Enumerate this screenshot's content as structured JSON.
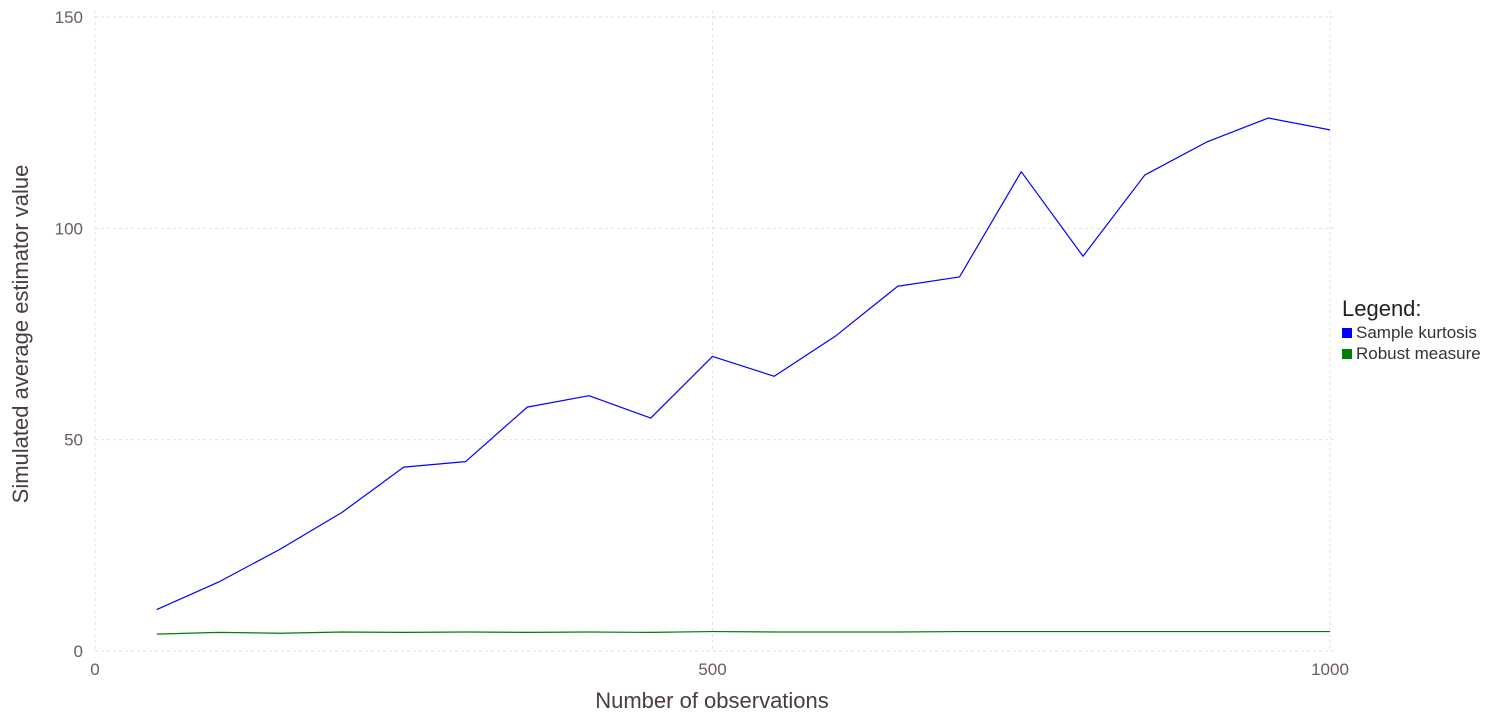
{
  "chart_data": {
    "type": "line",
    "title": "",
    "xlabel": "Number of observations",
    "ylabel": "Simulated average estimator value",
    "xlim": [
      0,
      1000
    ],
    "ylim": [
      0,
      150
    ],
    "x_ticks": [
      0,
      500,
      1000
    ],
    "y_ticks": [
      0,
      50,
      100,
      150
    ],
    "grid": true,
    "legend": {
      "title": "Legend:",
      "position": "right"
    },
    "x": [
      50,
      100,
      150,
      200,
      250,
      300,
      350,
      400,
      450,
      500,
      550,
      600,
      650,
      700,
      750,
      800,
      850,
      900,
      950,
      1000
    ],
    "series": [
      {
        "name": "Sample kurtosis",
        "color": "#0000ff",
        "values": [
          9.8,
          16.3,
          24.1,
          32.8,
          43.5,
          44.8,
          57.7,
          60.4,
          55.1,
          69.7,
          65.0,
          74.6,
          86.3,
          88.5,
          113.4,
          93.4,
          112.6,
          120.4,
          126.1,
          123.3
        ]
      },
      {
        "name": "Robust measure",
        "color": "#008000",
        "values": [
          4.0,
          4.4,
          4.2,
          4.5,
          4.4,
          4.5,
          4.4,
          4.5,
          4.4,
          4.6,
          4.5,
          4.5,
          4.5,
          4.6,
          4.6,
          4.6,
          4.6,
          4.6,
          4.6,
          4.6
        ]
      }
    ]
  }
}
